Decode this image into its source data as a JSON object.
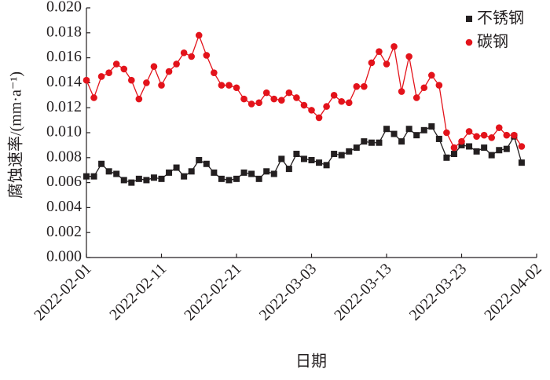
{
  "chart_data": {
    "type": "line",
    "x_label": "日期",
    "y_label": "腐蚀速率/(mm·a⁻¹)",
    "x": [
      "2022-02-01",
      "2022-02-02",
      "2022-02-03",
      "2022-02-04",
      "2022-02-05",
      "2022-02-06",
      "2022-02-07",
      "2022-02-08",
      "2022-02-09",
      "2022-02-10",
      "2022-02-11",
      "2022-02-12",
      "2022-02-13",
      "2022-02-14",
      "2022-02-15",
      "2022-02-16",
      "2022-02-17",
      "2022-02-18",
      "2022-02-19",
      "2022-02-20",
      "2022-02-21",
      "2022-02-22",
      "2022-02-23",
      "2022-02-24",
      "2022-02-25",
      "2022-02-26",
      "2022-02-27",
      "2022-02-28",
      "2022-03-01",
      "2022-03-02",
      "2022-03-03",
      "2022-03-04",
      "2022-03-05",
      "2022-03-06",
      "2022-03-07",
      "2022-03-08",
      "2022-03-09",
      "2022-03-10",
      "2022-03-11",
      "2022-03-12",
      "2022-03-13",
      "2022-03-14",
      "2022-03-15",
      "2022-03-16",
      "2022-03-17",
      "2022-03-18",
      "2022-03-19",
      "2022-03-20",
      "2022-03-21",
      "2022-03-22",
      "2022-03-23",
      "2022-03-24",
      "2022-03-25",
      "2022-03-26",
      "2022-03-27",
      "2022-03-28",
      "2022-03-29",
      "2022-03-30",
      "2022-03-31"
    ],
    "series": [
      {
        "name": "不锈钢",
        "color": "#231f20",
        "marker": "square",
        "values": [
          0.0065,
          0.0065,
          0.0075,
          0.0069,
          0.0067,
          0.0062,
          0.006,
          0.0063,
          0.0062,
          0.0064,
          0.0063,
          0.0068,
          0.0072,
          0.0065,
          0.0069,
          0.0078,
          0.0075,
          0.0068,
          0.0063,
          0.0062,
          0.0063,
          0.0068,
          0.0067,
          0.0063,
          0.0069,
          0.0067,
          0.0079,
          0.0071,
          0.0083,
          0.0079,
          0.0078,
          0.0076,
          0.0074,
          0.0083,
          0.0082,
          0.0085,
          0.0088,
          0.0093,
          0.0092,
          0.0092,
          0.0103,
          0.0099,
          0.0093,
          0.0103,
          0.0098,
          0.0102,
          0.0105,
          0.0095,
          0.008,
          0.0083,
          0.009,
          0.0089,
          0.0085,
          0.0088,
          0.0082,
          0.0086,
          0.0087,
          0.0097,
          0.0076
        ]
      },
      {
        "name": "碳钢",
        "color": "#e3131b",
        "marker": "circle",
        "values": [
          0.0142,
          0.0128,
          0.0145,
          0.0148,
          0.0155,
          0.0151,
          0.0142,
          0.0127,
          0.014,
          0.0153,
          0.0138,
          0.0149,
          0.0155,
          0.0164,
          0.0161,
          0.0178,
          0.0162,
          0.0148,
          0.0138,
          0.0138,
          0.0136,
          0.0127,
          0.0123,
          0.0124,
          0.0132,
          0.0127,
          0.0126,
          0.0132,
          0.0128,
          0.0122,
          0.0118,
          0.0112,
          0.0121,
          0.013,
          0.0125,
          0.0124,
          0.0137,
          0.0137,
          0.0156,
          0.0165,
          0.0155,
          0.0169,
          0.0133,
          0.0161,
          0.0128,
          0.0136,
          0.0146,
          0.0138,
          0.01,
          0.0088,
          0.0093,
          0.0101,
          0.0097,
          0.0098,
          0.0096,
          0.0104,
          0.0098,
          0.0098,
          0.0089
        ]
      }
    ],
    "xlim": [
      "2022-02-01",
      "2022-04-02"
    ],
    "xticks": [
      "2022-02-01",
      "2022-02-11",
      "2022-02-21",
      "2022-03-03",
      "2022-03-13",
      "2022-03-23",
      "2022-04-02"
    ],
    "ylim": [
      0,
      0.02
    ],
    "yticks": [
      {
        "value": 0,
        "label": "0.000"
      },
      {
        "value": 0.002,
        "label": "0.002"
      },
      {
        "value": 0.004,
        "label": "0.004"
      },
      {
        "value": 0.006,
        "label": "0.006"
      },
      {
        "value": 0.008,
        "label": "0.008"
      },
      {
        "value": 0.01,
        "label": "0.010"
      },
      {
        "value": 0.012,
        "label": "0.012"
      },
      {
        "value": 0.014,
        "label": "0.014"
      },
      {
        "value": 0.016,
        "label": "0.016"
      },
      {
        "value": 0.018,
        "label": "0.018"
      },
      {
        "value": 0.02,
        "label": "0.020"
      }
    ],
    "legend": "upper right"
  }
}
